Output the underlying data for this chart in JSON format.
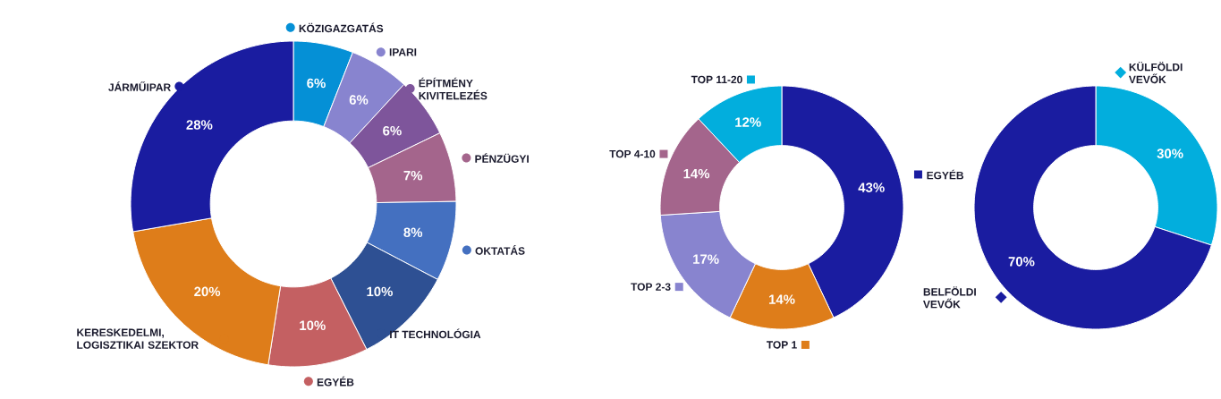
{
  "chart_data": [
    {
      "type": "donut",
      "marker": "circle",
      "legend": "right",
      "categories": [
        "KÖZIGAZGATÁS",
        "IPARI",
        "ÉPÍTMÉNY KIVITELEZÉS",
        "PÉNZÜGYI",
        "OKTATÁS",
        "IT TECHNOLÓGIA",
        "EGYÉB",
        "KERESKEDELMI, LOGISZTIKAI SZEKTOR",
        "JÁRMŰIPAR"
      ],
      "values": [
        6,
        6,
        6,
        7,
        8,
        10,
        10,
        20,
        28
      ],
      "value_labels": [
        "6%",
        "6%",
        "6%",
        "7%",
        "8%",
        "10%",
        "10%",
        "20%",
        "28%"
      ],
      "colors": [
        "#0590d6",
        "#8884cf",
        "#7e559b",
        "#a4658c",
        "#4470c0",
        "#2e5093",
        "#c46062",
        "#de7d1a",
        "#1a1ca0"
      ]
    },
    {
      "type": "donut",
      "marker": "square",
      "legend": "left",
      "categories": [
        "EGYÉB",
        "TOP 1",
        "TOP 2-3",
        "TOP 4-10",
        "TOP 11-20"
      ],
      "values": [
        43,
        14,
        17,
        14,
        12
      ],
      "value_labels": [
        "43%",
        "14%",
        "17%",
        "14%",
        "12%"
      ],
      "colors": [
        "#1a1ca0",
        "#de7d1a",
        "#8884cf",
        "#a4658c",
        "#02aedd"
      ]
    },
    {
      "type": "donut",
      "marker": "diamond",
      "legend": "right",
      "categories": [
        "KÜLFÖLDI VEVŐK",
        "BELFÖLDI VEVŐK"
      ],
      "values": [
        30,
        70
      ],
      "value_labels": [
        "30%",
        "70%"
      ],
      "colors": [
        "#02aedd",
        "#1a1ca0"
      ]
    }
  ]
}
